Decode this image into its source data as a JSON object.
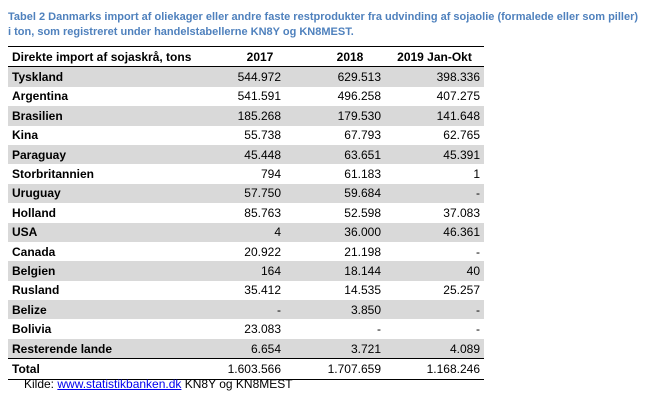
{
  "caption": "Tabel 2 Danmarks import af oliekager eller andre faste restprodukter fra udvinding af sojaolie (formalede eller som piller) i ton, som registreret under handelstabellerne KN8Y og KN8MEST.",
  "table": {
    "headers": [
      "Direkte import af sojaskrå, tons",
      "2017",
      "2018",
      "2019 Jan-Okt"
    ],
    "rows": [
      {
        "country": "Tyskland",
        "v2017": "544.972",
        "v2018": "629.513",
        "v2019": "398.336"
      },
      {
        "country": "Argentina",
        "v2017": "541.591",
        "v2018": "496.258",
        "v2019": "407.275"
      },
      {
        "country": "Brasilien",
        "v2017": "185.268",
        "v2018": "179.530",
        "v2019": "141.648"
      },
      {
        "country": "Kina",
        "v2017": "55.738",
        "v2018": "67.793",
        "v2019": "62.765"
      },
      {
        "country": "Paraguay",
        "v2017": "45.448",
        "v2018": "63.651",
        "v2019": "45.391"
      },
      {
        "country": "Storbritannien",
        "v2017": "794",
        "v2018": "61.183",
        "v2019": "1"
      },
      {
        "country": "Uruguay",
        "v2017": "57.750",
        "v2018": "59.684",
        "v2019": "-"
      },
      {
        "country": "Holland",
        "v2017": "85.763",
        "v2018": "52.598",
        "v2019": "37.083"
      },
      {
        "country": "USA",
        "v2017": "4",
        "v2018": "36.000",
        "v2019": "46.361"
      },
      {
        "country": "Canada",
        "v2017": "20.922",
        "v2018": "21.198",
        "v2019": "-"
      },
      {
        "country": "Belgien",
        "v2017": "164",
        "v2018": "18.144",
        "v2019": "40"
      },
      {
        "country": "Rusland",
        "v2017": "35.412",
        "v2018": "14.535",
        "v2019": "25.257"
      },
      {
        "country": "Belize",
        "v2017": "-",
        "v2018": "3.850",
        "v2019": "-"
      },
      {
        "country": "Bolivia",
        "v2017": "23.083",
        "v2018": "-",
        "v2019": "-"
      },
      {
        "country": "Resterende lande",
        "v2017": "6.654",
        "v2018": "3.721",
        "v2019": "4.089"
      }
    ],
    "total": {
      "label": "Total",
      "v2017": "1.603.566",
      "v2018": "1.707.659",
      "v2019": "1.168.246"
    }
  },
  "source": {
    "prefix": "Kilde: ",
    "link_text": "www.statistikbanken.dk",
    "suffix": " KN8Y og KN8MEST"
  }
}
